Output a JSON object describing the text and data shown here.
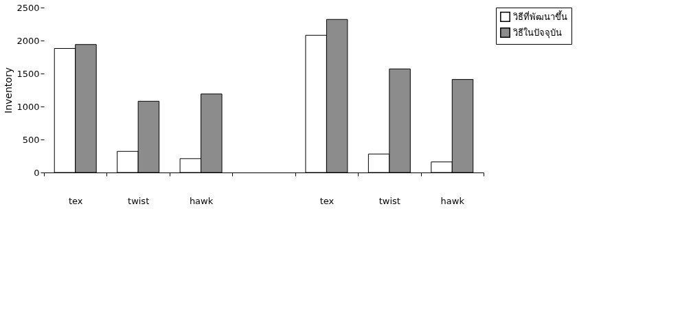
{
  "chart_data": {
    "type": "bar",
    "ylabel": "Inventory",
    "categories": [
      "tex",
      "twist",
      "hawk",
      null,
      "tex",
      "twist",
      "hawk"
    ],
    "series": [
      {
        "name": "วิธีที่พัฒนาขึ้น",
        "color": "#ffffff",
        "values": [
          1880,
          320,
          210,
          null,
          2080,
          280,
          160
        ]
      },
      {
        "name": "วิธีในปัจจุบัน",
        "color": "#8c8c8c",
        "values": [
          1940,
          1080,
          1190,
          null,
          2320,
          1570,
          1410
        ]
      }
    ],
    "ylim": [
      0,
      2500
    ],
    "yticks": [
      0,
      500,
      1000,
      1500,
      2000,
      2500
    ],
    "grid": false,
    "legend": "right"
  }
}
